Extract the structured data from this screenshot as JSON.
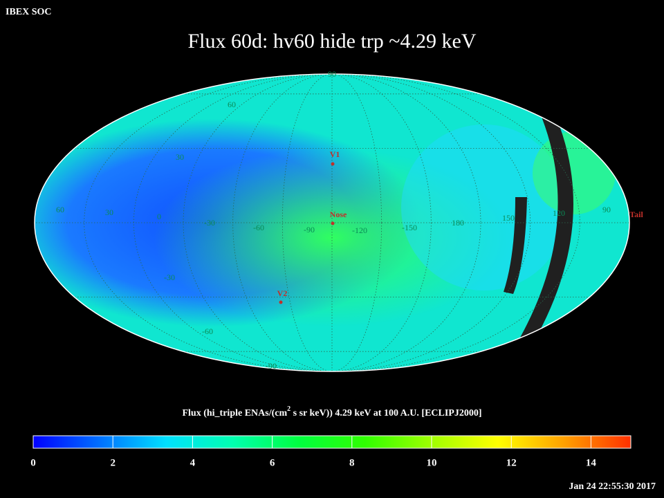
{
  "header": {
    "corner": "IBEX SOC",
    "title": "Flux   60d: hv60 hide trp ~4.29 keV"
  },
  "map": {
    "longitude_labels": [
      "60",
      "30",
      "0",
      "-30",
      "-60",
      "-90",
      "-120",
      "-150",
      "180",
      "150",
      "120",
      "90"
    ],
    "latitude_labels": [
      "90",
      "60",
      "30",
      "-30",
      "-60",
      "-90"
    ],
    "markers": [
      "V1",
      "Nose",
      "V2",
      "Tail"
    ]
  },
  "colorbar": {
    "label": [
      "Flux (hi_triple ENAs/(cm",
      "2",
      " s sr keV))  4.29 keV at 100 A.U. [ECLIPJ2000]"
    ],
    "range": [
      0,
      15
    ],
    "ticks": [
      0,
      2,
      4,
      6,
      8,
      10,
      12,
      14
    ],
    "colors": [
      "#0000ff",
      "#0070ff",
      "#00e0ff",
      "#00ffb0",
      "#00ff40",
      "#30ff00",
      "#a0ff00",
      "#ffff00",
      "#ffa000",
      "#ff3000"
    ]
  },
  "footer": {
    "timestamp": "Jan 24 22:55:30 2017"
  }
}
